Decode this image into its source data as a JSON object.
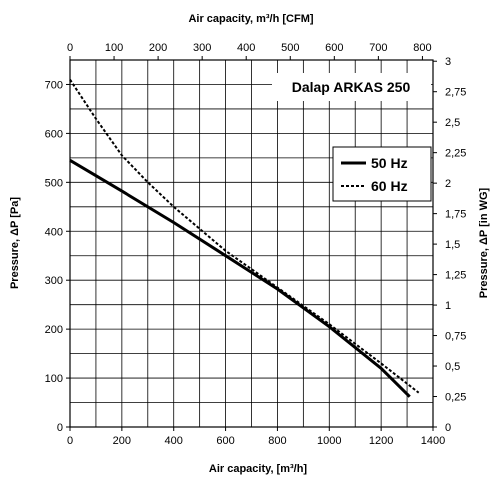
{
  "chart_data": {
    "type": "line",
    "title": "Dalap ARKAS 250",
    "xlabel": "Air capacity, [m³/h]",
    "ylabel": "Pressure, ΔP [Pa]",
    "x2label": "Air capacity, m³/h [CFM]",
    "y2label": "Pressure, ΔP [in WG]",
    "xlim": [
      0,
      1400
    ],
    "ylim": [
      0,
      750
    ],
    "x2lim": [
      0,
      824
    ],
    "y2lim": [
      0,
      3.01
    ],
    "x_ticks": [
      "0",
      "200",
      "400",
      "600",
      "800",
      "1000",
      "1200",
      "1400"
    ],
    "y_ticks": [
      "0",
      "100",
      "200",
      "300",
      "400",
      "500",
      "600",
      "700"
    ],
    "x2_ticks": [
      "0",
      "100",
      "200",
      "300",
      "400",
      "500",
      "600",
      "700",
      "800"
    ],
    "y2_ticks": [
      "0",
      "0,25",
      "0,5",
      "0,75",
      "1",
      "1,25",
      "1,5",
      "1,75",
      "2",
      "2,25",
      "2,5",
      "2,75",
      "3"
    ],
    "grid": true,
    "legend_position": "right",
    "series": [
      {
        "name": "50 Hz",
        "style": "solid",
        "color": "#000000",
        "x": [
          0,
          200,
          400,
          600,
          800,
          1000,
          1200,
          1310
        ],
        "y": [
          545,
          482,
          418,
          350,
          282,
          205,
          120,
          62
        ]
      },
      {
        "name": "60 Hz",
        "style": "dashed",
        "color": "#000000",
        "x": [
          0,
          100,
          200,
          300,
          400,
          600,
          800,
          1000,
          1200,
          1345
        ],
        "y": [
          710,
          630,
          555,
          500,
          450,
          360,
          285,
          210,
          130,
          70
        ]
      }
    ]
  }
}
